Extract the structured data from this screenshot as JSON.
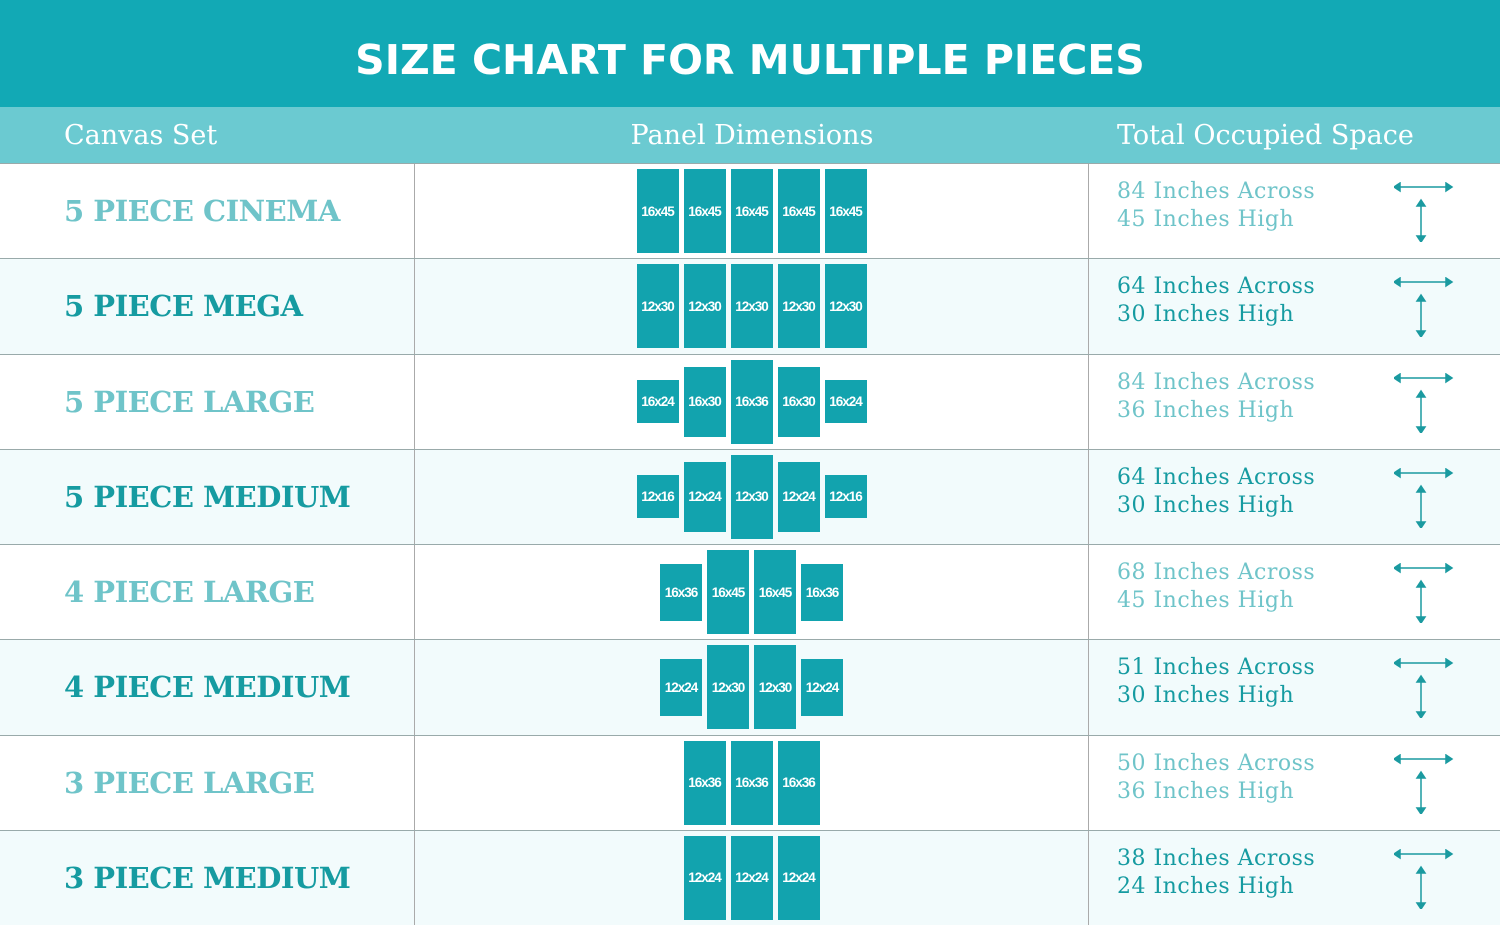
{
  "title": "SIZE CHART FOR MULTIPLE PIECES",
  "headers": {
    "set": "Canvas Set",
    "panels": "Panel Dimensions",
    "space": "Total Occupied Space"
  },
  "colors": {
    "banner": "#12a9b5",
    "header": "#6bcad1",
    "panel": "#12a3ae",
    "text_light": "#6fc4c9",
    "text_dark": "#169ba1"
  },
  "rows": [
    {
      "name": "5 PIECE CINEMA",
      "panels": [
        "16x45",
        "16x45",
        "16x45",
        "16x45",
        "16x45"
      ],
      "across": "84 Inches Across",
      "high": "45 Inches High"
    },
    {
      "name": "5 PIECE MEGA",
      "panels": [
        "12x30",
        "12x30",
        "12x30",
        "12x30",
        "12x30"
      ],
      "across": "64 Inches Across",
      "high": "30 Inches High"
    },
    {
      "name": "5 PIECE LARGE",
      "panels": [
        "16x24",
        "16x30",
        "16x36",
        "16x30",
        "16x24"
      ],
      "across": "84 Inches Across",
      "high": "36 Inches High"
    },
    {
      "name": "5 PIECE MEDIUM",
      "panels": [
        "12x16",
        "12x24",
        "12x30",
        "12x24",
        "12x16"
      ],
      "across": "64 Inches Across",
      "high": "30 Inches High"
    },
    {
      "name": "4 PIECE LARGE",
      "panels": [
        "16x36",
        "16x45",
        "16x45",
        "16x36"
      ],
      "across": "68 Inches Across",
      "high": "45 Inches High"
    },
    {
      "name": "4 PIECE MEDIUM",
      "panels": [
        "12x24",
        "12x30",
        "12x30",
        "12x24"
      ],
      "across": "51 Inches Across",
      "high": "30 Inches High"
    },
    {
      "name": "3 PIECE LARGE",
      "panels": [
        "16x36",
        "16x36",
        "16x36"
      ],
      "across": "50 Inches Across",
      "high": "36 Inches High"
    },
    {
      "name": "3 PIECE MEDIUM",
      "panels": [
        "12x24",
        "12x24",
        "12x24"
      ],
      "across": "38 Inches Across",
      "high": "24 Inches High"
    }
  ]
}
